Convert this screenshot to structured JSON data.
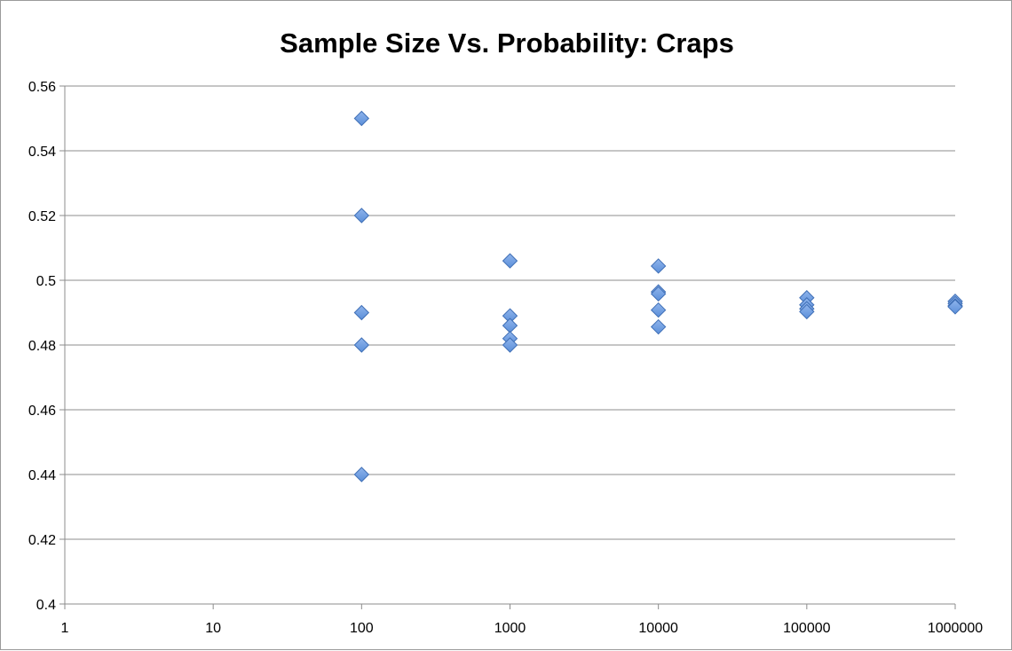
{
  "chart_data": {
    "type": "scatter",
    "title": "Sample Size Vs. Probability: Craps",
    "xlabel": "",
    "ylabel": "",
    "x_scale": "log",
    "xlim": [
      1,
      1000000
    ],
    "ylim": [
      0.4,
      0.56
    ],
    "x_ticks": [
      "1",
      "10",
      "100",
      "1000",
      "10000",
      "100000",
      "1000000"
    ],
    "y_ticks": [
      "0.4",
      "0.42",
      "0.44",
      "0.46",
      "0.48",
      "0.5",
      "0.52",
      "0.54",
      "0.56"
    ],
    "grid": "horizontal",
    "legend": "none",
    "marker": "diamond",
    "marker_color": "#5B8FD9",
    "series": [
      {
        "points": [
          {
            "x": 100,
            "y": 0.55
          },
          {
            "x": 100,
            "y": 0.52
          },
          {
            "x": 100,
            "y": 0.49
          },
          {
            "x": 100,
            "y": 0.48
          },
          {
            "x": 100,
            "y": 0.44
          },
          {
            "x": 1000,
            "y": 0.506
          },
          {
            "x": 1000,
            "y": 0.489
          },
          {
            "x": 1000,
            "y": 0.486
          },
          {
            "x": 1000,
            "y": 0.482
          },
          {
            "x": 1000,
            "y": 0.48
          },
          {
            "x": 10000,
            "y": 0.5044
          },
          {
            "x": 10000,
            "y": 0.4964
          },
          {
            "x": 10000,
            "y": 0.4958
          },
          {
            "x": 10000,
            "y": 0.4908
          },
          {
            "x": 10000,
            "y": 0.4856
          },
          {
            "x": 100000,
            "y": 0.4946
          },
          {
            "x": 100000,
            "y": 0.4924
          },
          {
            "x": 100000,
            "y": 0.4912
          },
          {
            "x": 100000,
            "y": 0.4903
          },
          {
            "x": 1000000,
            "y": 0.4935
          },
          {
            "x": 1000000,
            "y": 0.4928
          },
          {
            "x": 1000000,
            "y": 0.4921
          },
          {
            "x": 1000000,
            "y": 0.4918
          }
        ]
      }
    ]
  }
}
